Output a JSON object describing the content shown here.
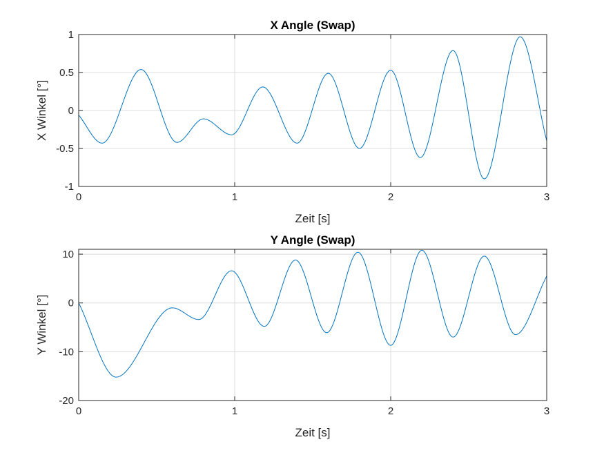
{
  "chart_data": [
    {
      "type": "line",
      "title": "X Angle (Swap)",
      "xlabel": "Zeit [s]",
      "ylabel": "X Winkel [°]",
      "xlim": [
        0,
        3
      ],
      "ylim": [
        -1,
        1
      ],
      "xticks": [
        0,
        1,
        2,
        3
      ],
      "yticks": [
        -1,
        -0.5,
        0,
        0.5,
        1
      ],
      "grid": true,
      "color": "#0072BD",
      "series": [
        {
          "x": [
            0,
            0.15,
            0.4,
            0.63,
            0.8,
            0.98,
            1.18,
            1.4,
            1.6,
            1.8,
            2.0,
            2.19,
            2.4,
            2.6,
            2.83,
            3.0
          ],
          "y": [
            -0.06,
            -0.43,
            0.54,
            -0.42,
            -0.11,
            -0.32,
            0.31,
            -0.43,
            0.49,
            -0.5,
            0.53,
            -0.62,
            0.79,
            -0.9,
            0.97,
            -0.4
          ]
        }
      ]
    },
    {
      "type": "line",
      "title": "Y Angle (Swap)",
      "xlabel": "Zeit [s]",
      "ylabel": "Y Winkel [°]",
      "xlim": [
        0,
        3
      ],
      "ylim": [
        -20,
        11
      ],
      "xticks": [
        0,
        1,
        2,
        3
      ],
      "yticks": [
        -20,
        -10,
        0,
        10
      ],
      "grid": true,
      "color": "#0072BD",
      "series": [
        {
          "x": [
            0,
            0.24,
            0.6,
            0.77,
            0.98,
            1.19,
            1.39,
            1.59,
            1.79,
            2.0,
            2.2,
            2.4,
            2.6,
            2.8,
            3.0
          ],
          "y": [
            0,
            -15.2,
            -1,
            -3.4,
            6.6,
            -4.8,
            8.8,
            -6.1,
            10.4,
            -8.7,
            10.8,
            -7,
            9.6,
            -6.5,
            5.5
          ]
        }
      ]
    }
  ]
}
